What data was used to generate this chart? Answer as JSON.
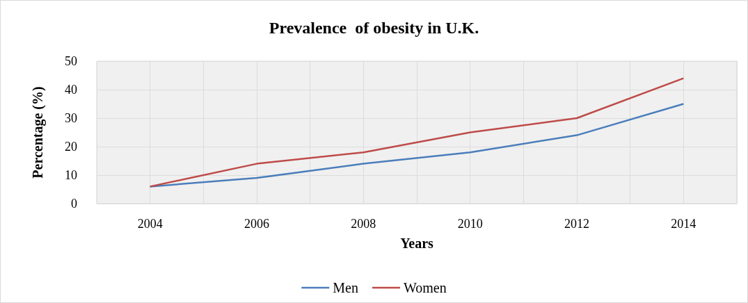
{
  "chart_data": {
    "type": "line",
    "title": "Prevalence  of obesity in U.K.",
    "xlabel": "Years",
    "ylabel": "Percentage (%)",
    "x": [
      2004,
      2006,
      2008,
      2010,
      2012,
      2014
    ],
    "series": [
      {
        "name": "Men",
        "color": "#4a7ebb",
        "values": [
          6,
          9,
          14,
          18,
          24,
          35
        ]
      },
      {
        "name": "Women",
        "color": "#be4b48",
        "values": [
          6,
          14,
          18,
          25,
          30,
          44
        ]
      }
    ],
    "xlim": [
      2003,
      2015
    ],
    "xticks": [
      {
        "value": 2003,
        "label": null
      },
      2004,
      {
        "value": 2005,
        "label": null
      },
      2006,
      {
        "value": 2007,
        "label": null
      },
      2008,
      {
        "value": 2009,
        "label": null
      },
      2010,
      {
        "value": 2011,
        "label": null
      },
      2012,
      {
        "value": 2013,
        "label": null
      },
      2014,
      {
        "value": 2015,
        "label": null
      }
    ],
    "ylim": [
      0,
      50
    ],
    "yticks": [
      0,
      10,
      20,
      30,
      40,
      50
    ],
    "grid": true,
    "legend": "bottom",
    "marker": "none",
    "line_style": "solid"
  }
}
